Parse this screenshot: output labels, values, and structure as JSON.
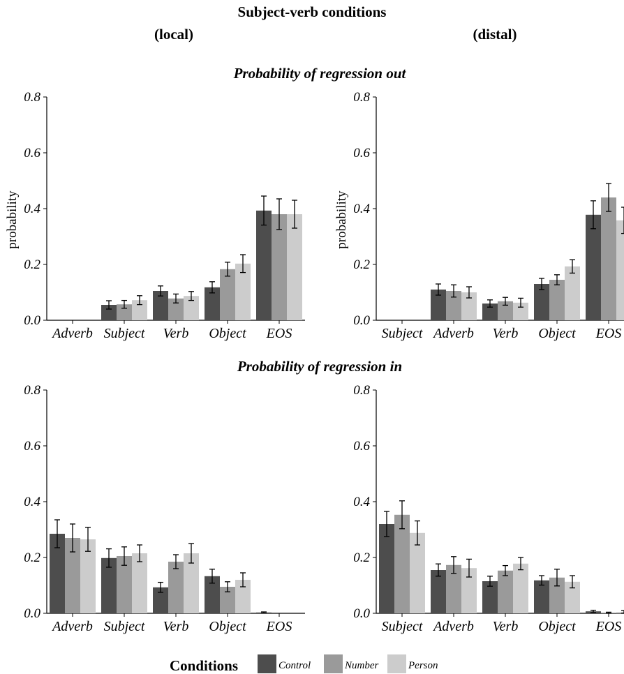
{
  "chart_data": {
    "type": "bar",
    "title": "Subject-verb conditions",
    "colors": {
      "Control": "#4d4d4d",
      "Number": "#9a9a9a",
      "Person": "#cccccc"
    },
    "legend": {
      "title": "Conditions",
      "position": "bottom",
      "items": [
        "Control",
        "Number",
        "Person"
      ]
    },
    "ylim": [
      0,
      0.8
    ],
    "yticks": [
      "0.0",
      "0.2",
      "0.4",
      "0.6",
      "0.8"
    ],
    "ylabel": "probability",
    "grid": false,
    "column_titles": [
      "(local)",
      "(distal)"
    ],
    "row_titles": [
      "Probability of regression out",
      "Probability of regression in"
    ],
    "panels": [
      {
        "row_title": "Probability of regression out",
        "column_title": "(local)",
        "ylabel": "probability",
        "categories": [
          "Adverb",
          "Subject",
          "Verb",
          "Object",
          "EOS"
        ],
        "series": [
          {
            "name": "Control",
            "values": [
              0,
              0.055,
              0.105,
              0.118,
              0.393
            ],
            "errors": [
              0,
              0.015,
              0.018,
              0.02,
              0.052
            ]
          },
          {
            "name": "Number",
            "values": [
              0,
              0.057,
              0.078,
              0.183,
              0.38
            ],
            "errors": [
              0,
              0.014,
              0.016,
              0.025,
              0.055
            ]
          },
          {
            "name": "Person",
            "values": [
              0,
              0.072,
              0.087,
              0.203,
              0.38
            ],
            "errors": [
              0,
              0.016,
              0.016,
              0.032,
              0.05
            ]
          }
        ]
      },
      {
        "row_title": "Probability of regression out",
        "column_title": "(distal)",
        "ylabel": "probability",
        "categories": [
          "Subject",
          "Adverb",
          "Verb",
          "Object",
          "EOS"
        ],
        "series": [
          {
            "name": "Control",
            "values": [
              0,
              0.11,
              0.06,
              0.13,
              0.378
            ],
            "errors": [
              0,
              0.02,
              0.013,
              0.02,
              0.05
            ]
          },
          {
            "name": "Number",
            "values": [
              0,
              0.105,
              0.068,
              0.145,
              0.44
            ],
            "errors": [
              0,
              0.022,
              0.014,
              0.018,
              0.05
            ]
          },
          {
            "name": "Person",
            "values": [
              0,
              0.1,
              0.063,
              0.193,
              0.358
            ],
            "errors": [
              0,
              0.02,
              0.016,
              0.024,
              0.047
            ]
          }
        ]
      },
      {
        "row_title": "Probability of regression in",
        "column_title": "(local)",
        "ylabel": "",
        "categories": [
          "Adverb",
          "Subject",
          "Verb",
          "Object",
          "EOS"
        ],
        "series": [
          {
            "name": "Control",
            "values": [
              0.285,
              0.198,
              0.093,
              0.133,
              0.003
            ],
            "errors": [
              0.05,
              0.033,
              0.018,
              0.025,
              0.002
            ]
          },
          {
            "name": "Number",
            "values": [
              0.27,
              0.205,
              0.185,
              0.095,
              0
            ],
            "errors": [
              0.05,
              0.033,
              0.025,
              0.018,
              0
            ]
          },
          {
            "name": "Person",
            "values": [
              0.265,
              0.215,
              0.215,
              0.12,
              0
            ],
            "errors": [
              0.043,
              0.03,
              0.035,
              0.025,
              0
            ]
          }
        ]
      },
      {
        "row_title": "Probability of regression in",
        "column_title": "(distal)",
        "ylabel": "",
        "categories": [
          "Subject",
          "Adverb",
          "Verb",
          "Object",
          "EOS"
        ],
        "series": [
          {
            "name": "Control",
            "values": [
              0.32,
              0.155,
              0.115,
              0.118,
              0.007
            ],
            "errors": [
              0.045,
              0.022,
              0.018,
              0.017,
              0.004
            ]
          },
          {
            "name": "Number",
            "values": [
              0.353,
              0.173,
              0.153,
              0.128,
              0.002
            ],
            "errors": [
              0.05,
              0.03,
              0.018,
              0.03,
              0.002
            ]
          },
          {
            "name": "Person",
            "values": [
              0.288,
              0.162,
              0.178,
              0.113,
              0.005
            ],
            "errors": [
              0.043,
              0.032,
              0.022,
              0.022,
              0.005
            ]
          }
        ]
      }
    ]
  }
}
